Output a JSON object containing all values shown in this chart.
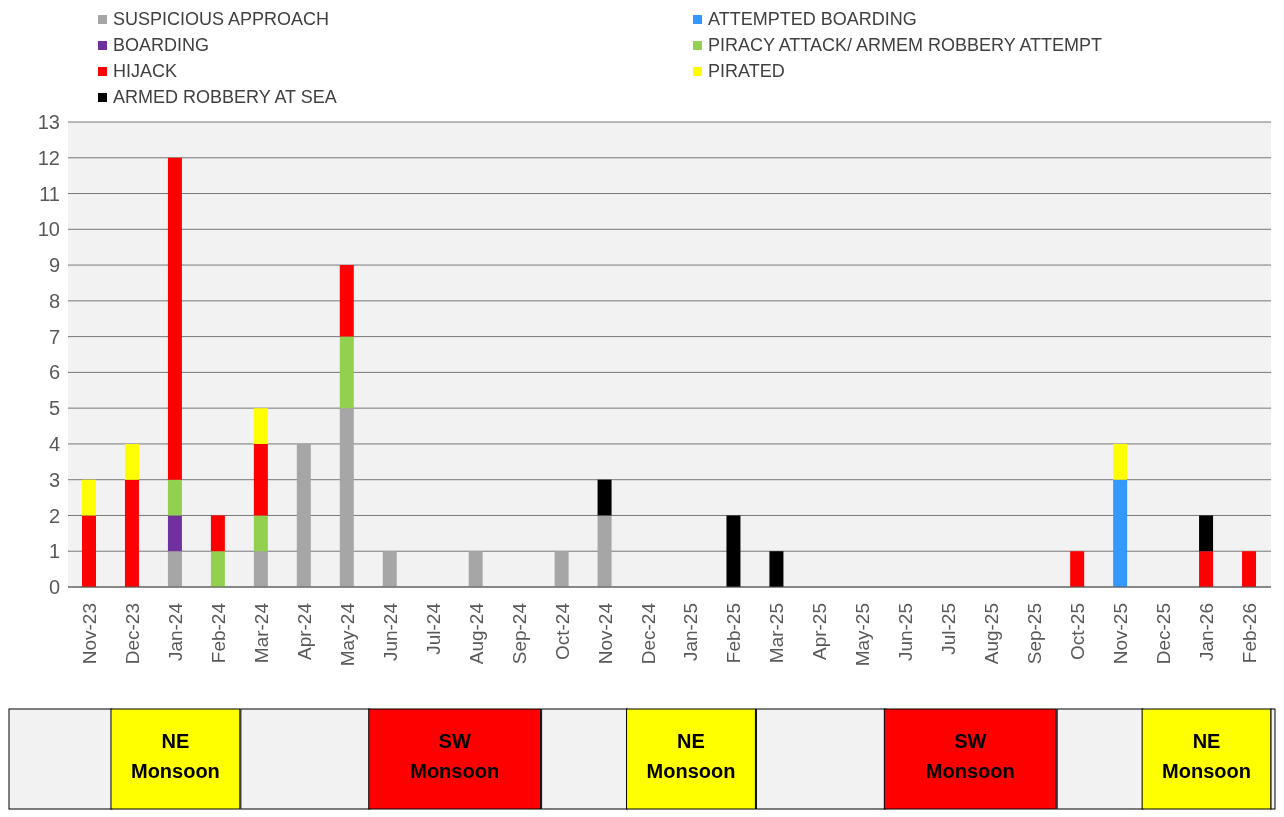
{
  "chart_data": {
    "type": "bar",
    "stacked": true,
    "categories": [
      "Nov-23",
      "Dec-23",
      "Jan-24",
      "Feb-24",
      "Mar-24",
      "Apr-24",
      "May-24",
      "Jun-24",
      "Jul-24",
      "Aug-24",
      "Sep-24",
      "Oct-24",
      "Nov-24",
      "Dec-24",
      "Jan-25",
      "Feb-25",
      "Mar-25",
      "Apr-25",
      "May-25",
      "Jun-25",
      "Jul-25",
      "Aug-25",
      "Sep-25",
      "Oct-25",
      "Nov-25",
      "Dec-25",
      "Jan-26",
      "Feb-26"
    ],
    "series": [
      {
        "name": "SUSPICIOUS APPROACH",
        "color": "#a6a6a6",
        "values": [
          0,
          0,
          1,
          0,
          1,
          4,
          5,
          1,
          0,
          1,
          0,
          1,
          2,
          0,
          0,
          0,
          0,
          0,
          0,
          0,
          0,
          0,
          0,
          0,
          0,
          0,
          0,
          0
        ]
      },
      {
        "name": "ATTEMPTED BOARDING",
        "color": "#3399ff",
        "values": [
          0,
          0,
          0,
          0,
          0,
          0,
          0,
          0,
          0,
          0,
          0,
          0,
          0,
          0,
          0,
          0,
          0,
          0,
          0,
          0,
          0,
          0,
          0,
          0,
          3,
          0,
          0,
          0
        ]
      },
      {
        "name": "BOARDING",
        "color": "#7030a0",
        "values": [
          0,
          0,
          1,
          0,
          0,
          0,
          0,
          0,
          0,
          0,
          0,
          0,
          0,
          0,
          0,
          0,
          0,
          0,
          0,
          0,
          0,
          0,
          0,
          0,
          0,
          0,
          0,
          0
        ]
      },
      {
        "name": "PIRACY ATTACK/ ARMEM ROBBERY ATTEMPT",
        "color": "#92d050",
        "values": [
          0,
          0,
          1,
          1,
          1,
          0,
          2,
          0,
          0,
          0,
          0,
          0,
          0,
          0,
          0,
          0,
          0,
          0,
          0,
          0,
          0,
          0,
          0,
          0,
          0,
          0,
          0,
          0
        ]
      },
      {
        "name": "HIJACK",
        "color": "#ff0000",
        "values": [
          2,
          3,
          9,
          1,
          2,
          0,
          2,
          0,
          0,
          0,
          0,
          0,
          0,
          0,
          0,
          0,
          0,
          0,
          0,
          0,
          0,
          0,
          0,
          1,
          0,
          0,
          1,
          1
        ]
      },
      {
        "name": "PIRATED",
        "color": "#ffff00",
        "values": [
          1,
          1,
          0,
          0,
          1,
          0,
          0,
          0,
          0,
          0,
          0,
          0,
          0,
          0,
          0,
          0,
          0,
          0,
          0,
          0,
          0,
          0,
          0,
          0,
          1,
          0,
          0,
          0
        ]
      },
      {
        "name": "ARMED ROBBERY AT SEA",
        "color": "#000000",
        "values": [
          0,
          0,
          0,
          0,
          0,
          0,
          0,
          0,
          0,
          0,
          0,
          0,
          1,
          0,
          0,
          2,
          1,
          0,
          0,
          0,
          0,
          0,
          0,
          0,
          0,
          0,
          1,
          0
        ]
      }
    ],
    "ylim": [
      0,
      13
    ],
    "yticks": [
      0,
      1,
      2,
      3,
      4,
      5,
      6,
      7,
      8,
      9,
      10,
      11,
      12,
      13
    ],
    "grid": "y",
    "legend": "top",
    "annotations": [
      "NE Monsoon",
      "SW Monsoon",
      "NE Monsoon",
      "SW Monsoon",
      "NE Monsoon"
    ]
  }
}
